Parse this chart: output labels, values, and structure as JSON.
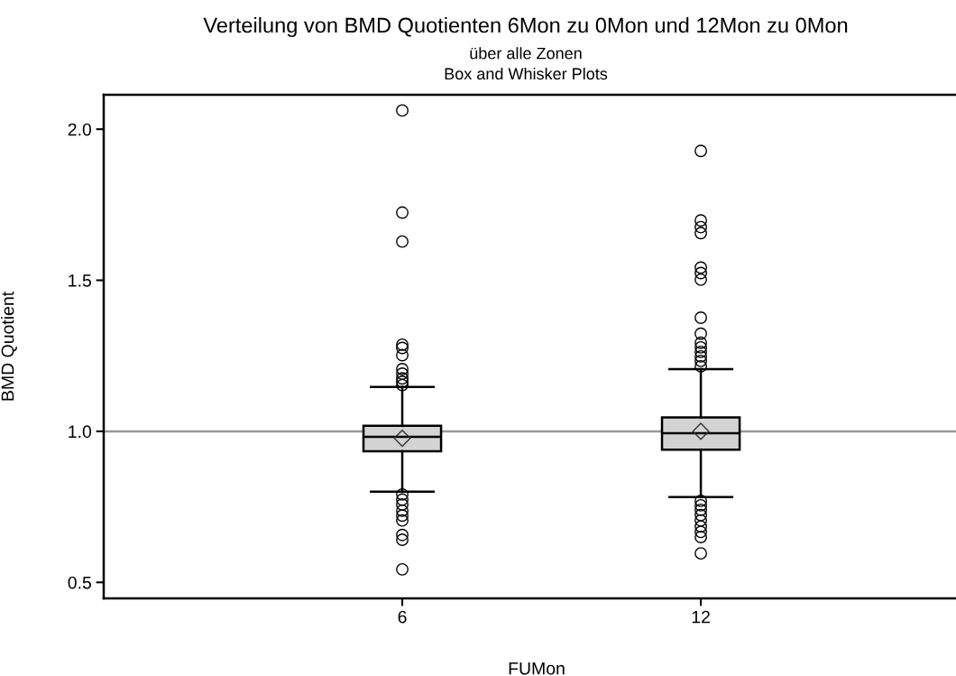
{
  "chart_data": {
    "type": "box",
    "title": "Verteilung von BMD Quotienten 6Mon zu 0Mon und 12Mon zu 0Mon",
    "subtitle": "über alle Zonen\nBox and Whisker Plots",
    "xlabel": "FUMon",
    "ylabel": "BMD Quotient",
    "categories": [
      "6",
      "12"
    ],
    "boxes": [
      {
        "low": 0.8,
        "q1": 0.934,
        "median": 0.982,
        "q3": 1.018,
        "high": 1.147,
        "mean": 0.977,
        "outliers": [
          2.062,
          1.724,
          1.628,
          1.287,
          1.276,
          1.252,
          1.206,
          1.191,
          1.175,
          1.164,
          1.153,
          0.791,
          0.774,
          0.758,
          0.737,
          0.721,
          0.705,
          0.657,
          0.641,
          0.543
        ]
      },
      {
        "low": 0.782,
        "q1": 0.939,
        "median": 0.994,
        "q3": 1.046,
        "high": 1.206,
        "mean": 1.0,
        "outliers": [
          1.928,
          1.698,
          1.676,
          1.656,
          1.542,
          1.524,
          1.502,
          1.376,
          1.323,
          1.293,
          1.278,
          1.263,
          1.248,
          1.233,
          1.215,
          0.77,
          0.755,
          0.74,
          0.723,
          0.705,
          0.685,
          0.667,
          0.65,
          0.596
        ]
      }
    ],
    "color": "#d3d3d3",
    "ylim": [
      0.447,
      2.114
    ],
    "yticks": [
      {
        "value": 0.5,
        "label": "0.5"
      },
      {
        "value": 1.0,
        "label": "1.0"
      },
      {
        "value": 1.5,
        "label": "1.5"
      },
      {
        "value": 2.0,
        "label": "2.0"
      }
    ],
    "ref_lines": [
      {
        "axis": "y",
        "value": 1.0,
        "label": null,
        "color": "#999999"
      }
    ],
    "marker": "circle",
    "grid": false,
    "legend": false
  }
}
